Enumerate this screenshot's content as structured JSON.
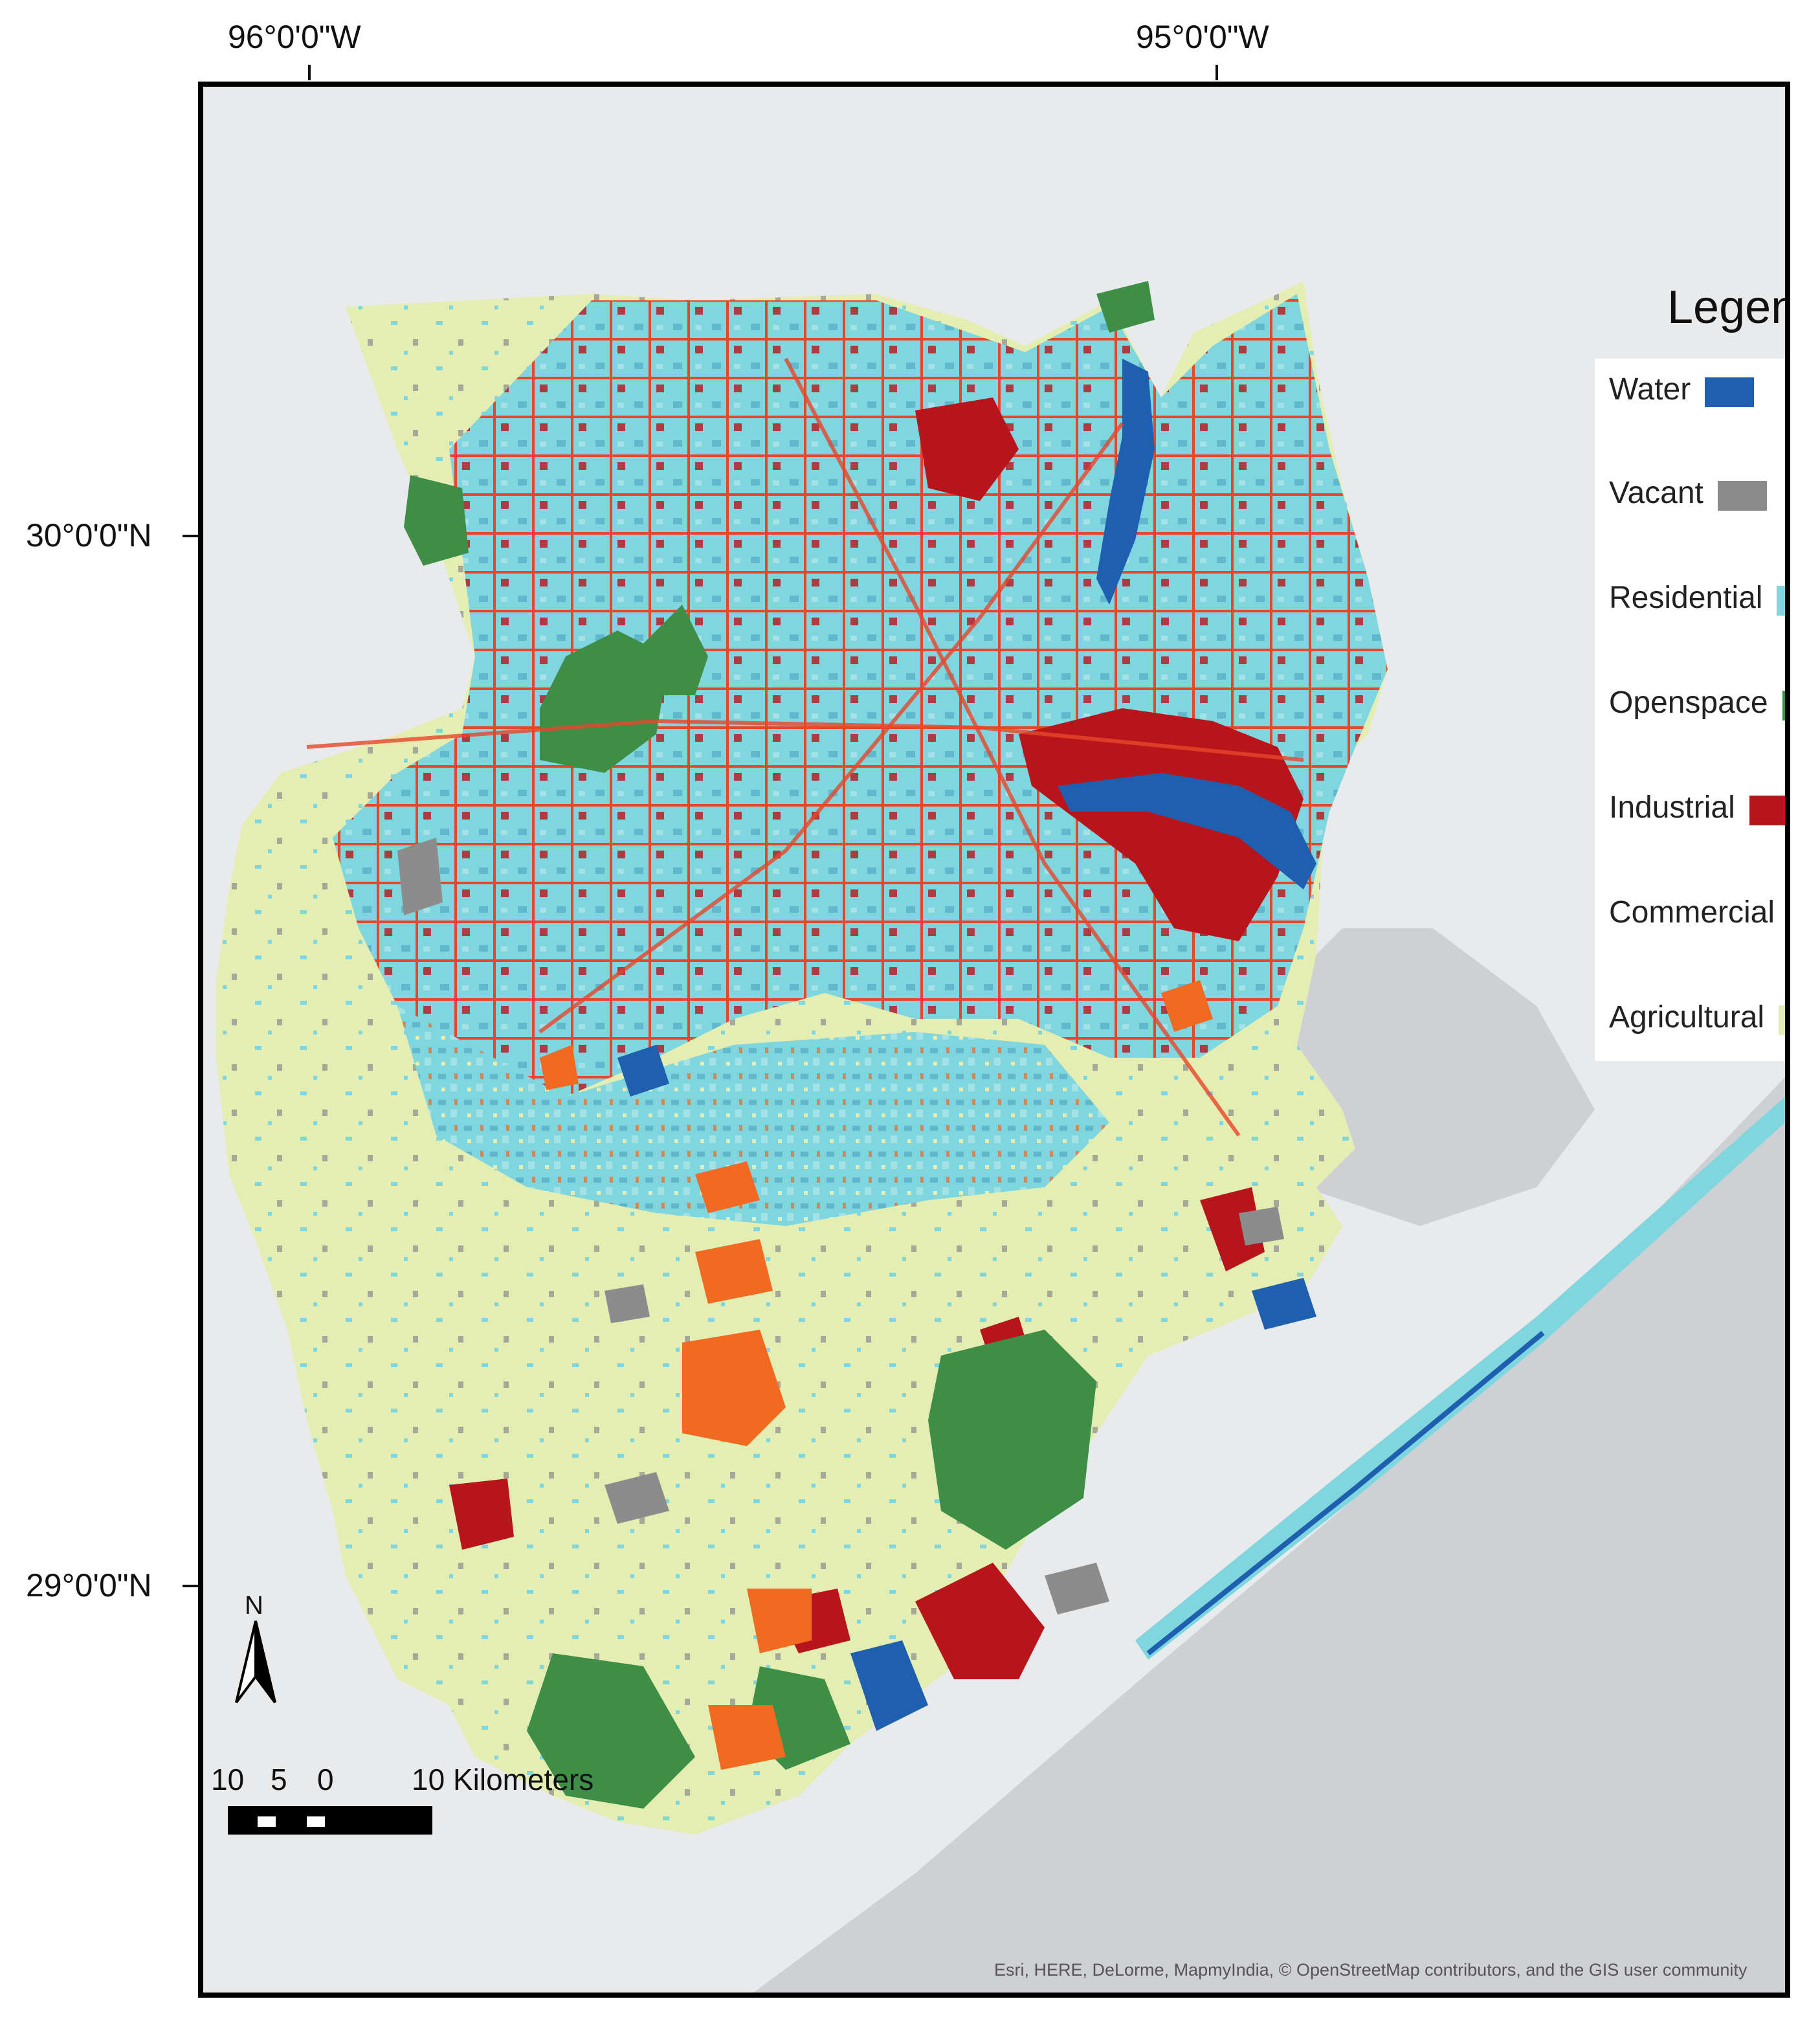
{
  "graticule": {
    "lon_labels": [
      "96°0'0\"W",
      "95°0'0\"W"
    ],
    "lat_labels": [
      "30°0'0\"N",
      "29°0'0\"N"
    ]
  },
  "legend": {
    "title": "Legend",
    "items": [
      {
        "label": "Water",
        "color": "#1f5fb0"
      },
      {
        "label": "Vacant",
        "color": "#8c8c8c"
      },
      {
        "label": "Residential",
        "color": "#7fd6df"
      },
      {
        "label": "Openspace",
        "color": "#3e8e47"
      },
      {
        "label": "Industrial",
        "color": "#b8141b"
      },
      {
        "label": "Commercial",
        "color": "#f26a21"
      },
      {
        "label": "Agricultural",
        "color": "#e4eeb2"
      }
    ]
  },
  "north_arrow": {
    "letter": "N"
  },
  "scale_bar": {
    "labels": [
      "10",
      "5",
      "0",
      "10 Kilometers"
    ]
  },
  "attribution": "Esri, HERE, DeLorme, MapmyIndia, © OpenStreetMap contributors, and the GIS user community",
  "colors": {
    "water_bg": "#cfd0d4",
    "land_bg": "#e9eaec"
  }
}
